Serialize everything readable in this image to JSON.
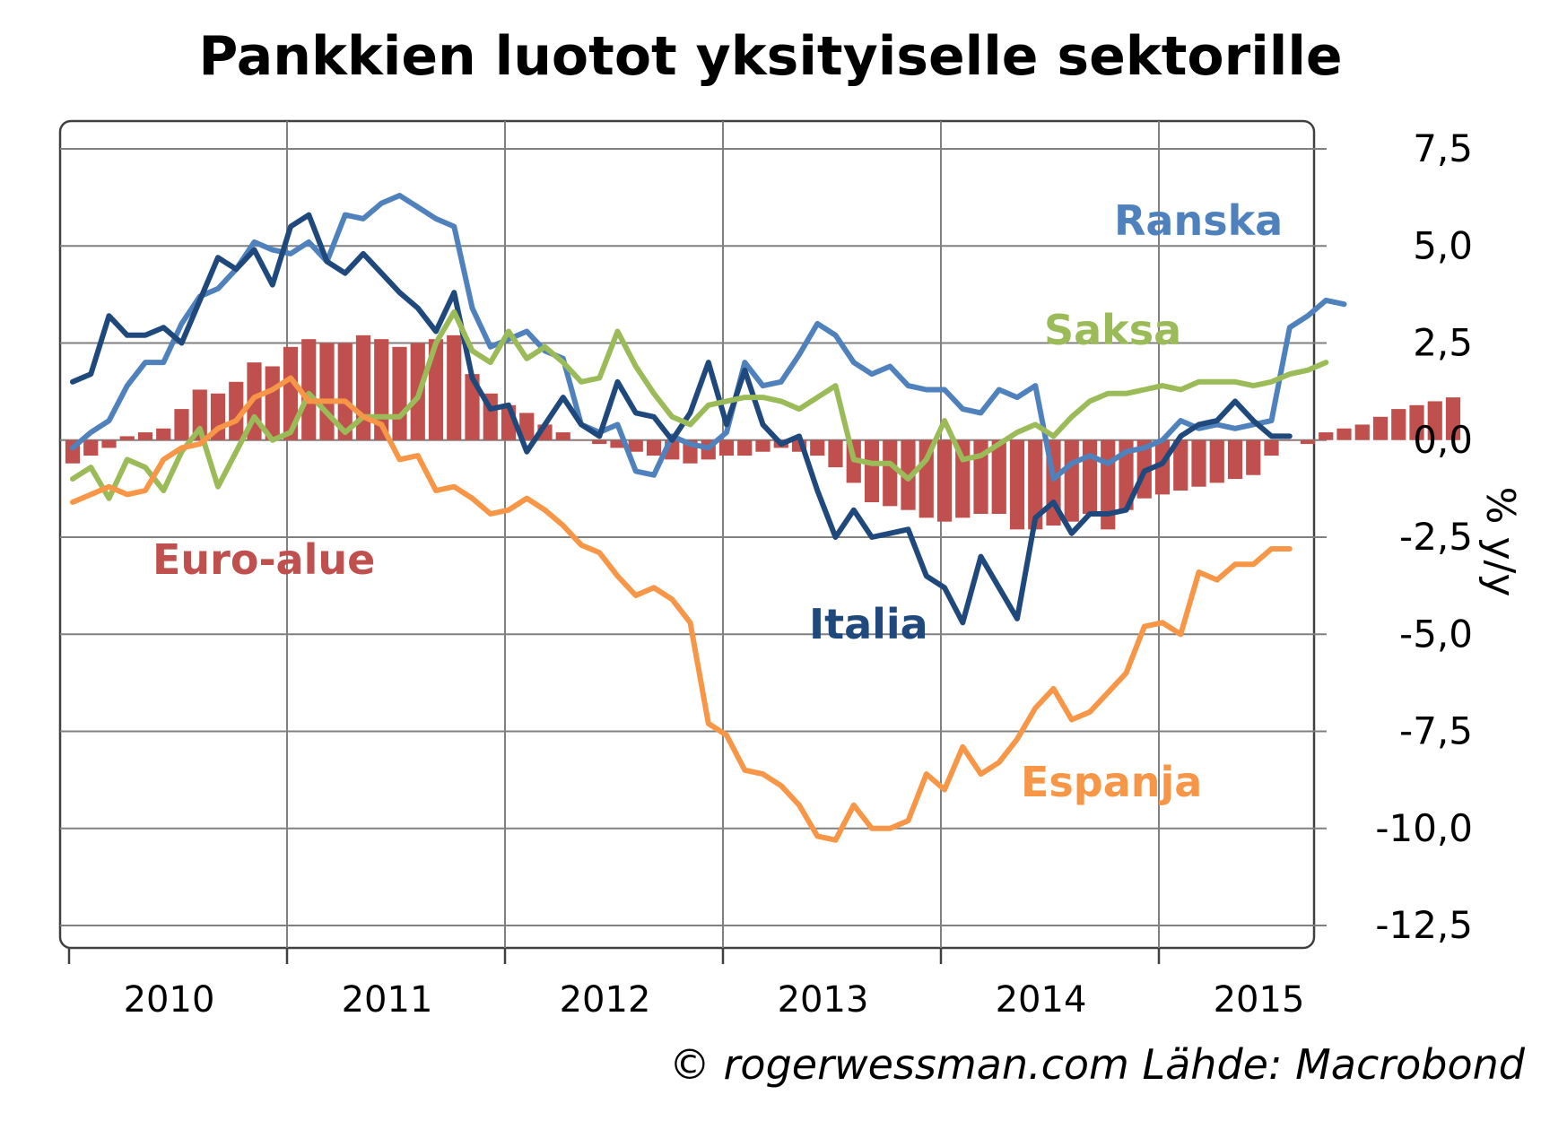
{
  "title": "Pankkien luotot yksityiselle sektorille",
  "source": "© rogerwessman.com Lähde: Macrobond",
  "colors": {
    "euro_alue": "#c0504d",
    "ranska": "#4f81bd",
    "italia": "#1f497d",
    "saksa": "#9bbb59",
    "espanja": "#f79646",
    "grid": "#808080"
  },
  "chart_data": {
    "type": "line",
    "title": "Pankkien luotot yksityiselle sektorille",
    "ylabel": "% y/y",
    "xlabel": "",
    "ylim": [
      -12.5,
      7.5
    ],
    "y_ticks": [
      "7,5",
      "5,0",
      "2,5",
      "0,0",
      "-2,5",
      "-5,0",
      "-7,5",
      "-10,0",
      "-12,5"
    ],
    "x_ticks": [
      "2010",
      "2011",
      "2012",
      "2013",
      "2014",
      "2015"
    ],
    "x_start": "2010-01",
    "x_end": "2015-07",
    "grid": true,
    "series": [
      {
        "name": "Euro-alue",
        "type": "bar",
        "color": "#c0504d",
        "values": [
          -0.6,
          -0.4,
          -0.2,
          0.1,
          0.2,
          0.3,
          0.8,
          1.3,
          1.2,
          1.5,
          2.0,
          1.9,
          2.4,
          2.6,
          2.5,
          2.5,
          2.7,
          2.6,
          2.4,
          2.5,
          2.6,
          2.7,
          1.7,
          1.2,
          0.9,
          0.7,
          0.4,
          0.2,
          0.0,
          -0.1,
          -0.2,
          -0.3,
          -0.4,
          -0.5,
          -0.6,
          -0.5,
          -0.4,
          -0.4,
          -0.3,
          -0.2,
          -0.3,
          -0.4,
          -0.7,
          -1.1,
          -1.6,
          -1.7,
          -1.8,
          -2.0,
          -2.1,
          -2.0,
          -1.9,
          -1.9,
          -2.3,
          -2.3,
          -2.2,
          -2.1,
          -1.9,
          -2.3,
          -1.8,
          -1.5,
          -1.4,
          -1.3,
          -1.2,
          -1.1,
          -1.0,
          -0.9,
          -0.4,
          0.0,
          -0.1,
          0.2,
          0.3,
          0.4,
          0.6,
          0.8,
          0.9,
          1.0,
          1.1
        ]
      },
      {
        "name": "Ranska",
        "type": "line",
        "color": "#4f81bd",
        "values": [
          -0.2,
          0.2,
          0.5,
          1.4,
          2.0,
          2.0,
          3.0,
          3.7,
          3.9,
          4.4,
          5.1,
          4.9,
          4.8,
          5.1,
          4.6,
          5.8,
          5.7,
          6.1,
          6.3,
          6.0,
          5.7,
          5.5,
          3.4,
          2.4,
          2.6,
          2.8,
          2.3,
          2.1,
          0.4,
          0.2,
          0.4,
          -0.8,
          -0.9,
          0.1,
          -0.1,
          -0.2,
          0.2,
          2.0,
          1.4,
          1.5,
          2.2,
          3.0,
          2.7,
          2.0,
          1.7,
          1.9,
          1.4,
          1.3,
          1.3,
          0.8,
          0.7,
          1.3,
          1.1,
          1.4,
          -1.0,
          -0.6,
          -0.4,
          -0.6,
          -0.3,
          -0.2,
          0.0,
          0.5,
          0.3,
          0.4,
          0.3,
          0.4,
          0.5,
          2.9,
          3.2,
          3.6,
          3.5
        ]
      },
      {
        "name": "Italia",
        "type": "line",
        "color": "#1f497d",
        "values": [
          1.5,
          1.7,
          3.2,
          2.7,
          2.7,
          2.9,
          2.5,
          3.6,
          4.7,
          4.4,
          4.9,
          4.0,
          5.5,
          5.8,
          4.6,
          4.3,
          4.8,
          4.3,
          3.8,
          3.4,
          2.8,
          3.8,
          1.6,
          0.8,
          0.9,
          -0.3,
          0.4,
          1.1,
          0.4,
          0.1,
          1.5,
          0.7,
          0.6,
          0.0,
          0.7,
          2.0,
          0.4,
          1.8,
          0.4,
          -0.1,
          0.1,
          -1.3,
          -2.5,
          -1.8,
          -2.5,
          -2.4,
          -2.3,
          -3.5,
          -3.8,
          -4.7,
          -3.0,
          -3.8,
          -4.6,
          -2.0,
          -1.6,
          -2.4,
          -1.9,
          -1.9,
          -1.8,
          -0.8,
          -0.6,
          0.1,
          0.4,
          0.5,
          1.0,
          0.5,
          0.1,
          0.1
        ]
      },
      {
        "name": "Saksa",
        "type": "line",
        "color": "#9bbb59",
        "values": [
          -1.0,
          -0.7,
          -1.5,
          -0.5,
          -0.7,
          -1.3,
          -0.3,
          0.3,
          -1.2,
          -0.3,
          0.6,
          0.0,
          0.2,
          1.2,
          0.7,
          0.2,
          0.6,
          0.6,
          0.6,
          1.1,
          2.5,
          3.3,
          2.3,
          2.0,
          2.8,
          2.1,
          2.4,
          2.0,
          1.5,
          1.6,
          2.8,
          1.9,
          1.2,
          0.6,
          0.4,
          0.9,
          1.0,
          1.1,
          1.1,
          1.0,
          0.8,
          1.1,
          1.4,
          -0.5,
          -0.6,
          -0.6,
          -1.0,
          -0.5,
          0.5,
          -0.5,
          -0.4,
          -0.1,
          0.2,
          0.4,
          0.1,
          0.6,
          1.0,
          1.2,
          1.2,
          1.3,
          1.4,
          1.3,
          1.5,
          1.5,
          1.5,
          1.4,
          1.5,
          1.7,
          1.8,
          2.0
        ]
      },
      {
        "name": "Espanja",
        "type": "line",
        "color": "#f79646",
        "values": [
          -1.6,
          -1.4,
          -1.2,
          -1.4,
          -1.3,
          -0.5,
          -0.2,
          -0.1,
          0.3,
          0.5,
          1.1,
          1.3,
          1.6,
          1.0,
          1.0,
          1.0,
          0.6,
          0.4,
          -0.5,
          -0.4,
          -1.3,
          -1.2,
          -1.5,
          -1.9,
          -1.8,
          -1.5,
          -1.8,
          -2.2,
          -2.7,
          -2.9,
          -3.5,
          -4.0,
          -3.8,
          -4.1,
          -4.7,
          -7.3,
          -7.6,
          -8.5,
          -8.6,
          -8.9,
          -9.4,
          -10.2,
          -10.3,
          -9.4,
          -10.0,
          -10.0,
          -9.8,
          -8.6,
          -9.0,
          -7.9,
          -8.6,
          -8.3,
          -7.7,
          -6.9,
          -6.4,
          -7.2,
          -7.0,
          -6.5,
          -6.0,
          -4.8,
          -4.7,
          -5.0,
          -3.4,
          -3.6,
          -3.2,
          -3.2,
          -2.8,
          -2.8
        ]
      }
    ],
    "annotations": [
      {
        "text": "Ranska",
        "color": "#4f81bd"
      },
      {
        "text": "Saksa",
        "color": "#9bbb59"
      },
      {
        "text": "Euro-alue",
        "color": "#c0504d"
      },
      {
        "text": "Italia",
        "color": "#1f497d"
      },
      {
        "text": "Espanja",
        "color": "#f79646"
      }
    ]
  }
}
